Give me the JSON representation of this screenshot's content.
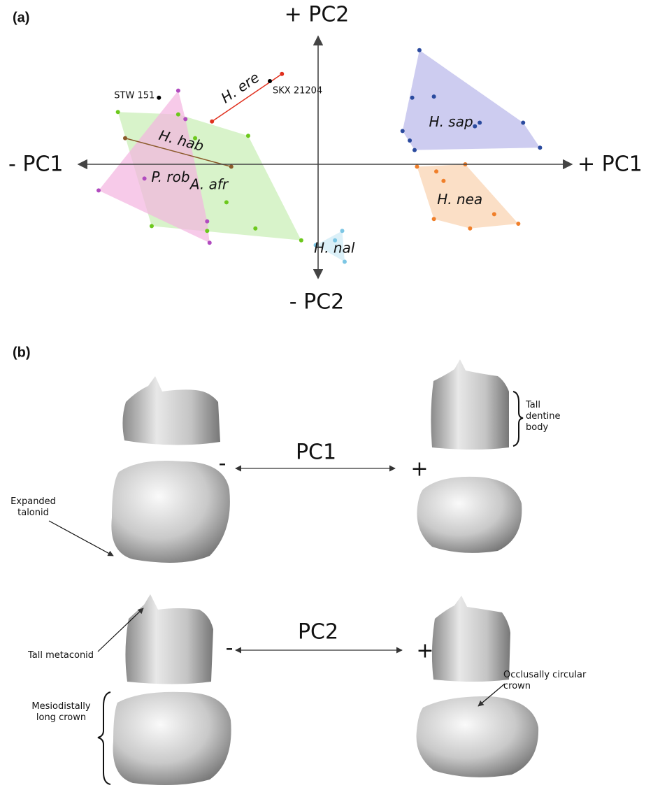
{
  "chart_data": {
    "type": "scatter",
    "panel_label": "(a)",
    "x_labels": [
      "- PC1",
      "+ PC1"
    ],
    "y_labels": [
      "+ PC2",
      "- PC2"
    ],
    "xlim": [
      -10,
      10
    ],
    "ylim": [
      -5,
      5
    ],
    "series": [
      {
        "name": "H. sap",
        "color": "#2a4a9e",
        "fill": "#b8b6ea",
        "x": [
          4.2,
          3.9,
          4.8,
          3.5,
          3.8,
          4.0,
          6.5,
          6.7,
          8.5,
          9.2
        ],
        "values": [
          4.8,
          2.8,
          2.85,
          1.4,
          1.0,
          0.6,
          1.6,
          1.75,
          1.75,
          0.7
        ]
      },
      {
        "name": "H. nea",
        "color": "#f07f2a",
        "fill": "#f9d2ae",
        "x": [
          4.1,
          6.1,
          4.9,
          5.2,
          7.3,
          8.3,
          6.3,
          4.8
        ],
        "values": [
          -0.1,
          0.0,
          -0.3,
          -0.7,
          -2.1,
          -2.5,
          -2.7,
          -2.3
        ]
      },
      {
        "name": "H. nal",
        "color": "#7cc6e4",
        "fill": "#cce9f5",
        "x": [
          1.0,
          0.7,
          -0.1,
          1.1
        ],
        "values": [
          -2.8,
          -3.2,
          -3.4,
          -4.1
        ]
      },
      {
        "name": "A. afr",
        "color": "#6cc81c",
        "fill": "#c8eeb3",
        "x": [
          -8.3,
          -5.8,
          -5.1,
          -2.9,
          -3.8,
          -4.6,
          -6.9,
          -2.6,
          -0.7
        ],
        "values": [
          2.2,
          2.1,
          1.1,
          1.2,
          -1.6,
          -2.8,
          -2.6,
          -2.7,
          -3.2
        ]
      },
      {
        "name": "P. rob",
        "color": "#b14bbf",
        "fill": "#f3b3e0",
        "x": [
          -5.8,
          -5.5,
          -7.2,
          -9.1,
          -4.6,
          -4.5
        ],
        "values": [
          3.1,
          1.9,
          -0.6,
          -1.1,
          -2.4,
          -3.3
        ]
      },
      {
        "name": "H. hab",
        "color": "#8b5a2b",
        "x": [
          -8.0,
          -3.6
        ],
        "values": [
          1.1,
          -0.1
        ]
      },
      {
        "name": "H. ere",
        "color": "#e0301e",
        "x": [
          -4.4,
          -1.5
        ],
        "values": [
          1.8,
          3.8
        ]
      },
      {
        "name": "STW 151",
        "color": "#000000",
        "x": [
          -6.6
        ],
        "values": [
          2.8
        ]
      },
      {
        "name": "SKX 21204",
        "color": "#000000",
        "x": [
          -2.0
        ],
        "values": [
          3.5
        ]
      }
    ]
  },
  "panel_b": {
    "panel_label": "(b)",
    "pc1": {
      "label": "PC1",
      "minus": "-",
      "plus": "+"
    },
    "pc2": {
      "label": "PC2",
      "minus": "-",
      "plus": "+"
    },
    "notes": [
      "Tall dentine body",
      "Expanded talonid",
      "Tall metaconid",
      "Mesiodistally long crown",
      "Occlusally circular crown"
    ]
  }
}
